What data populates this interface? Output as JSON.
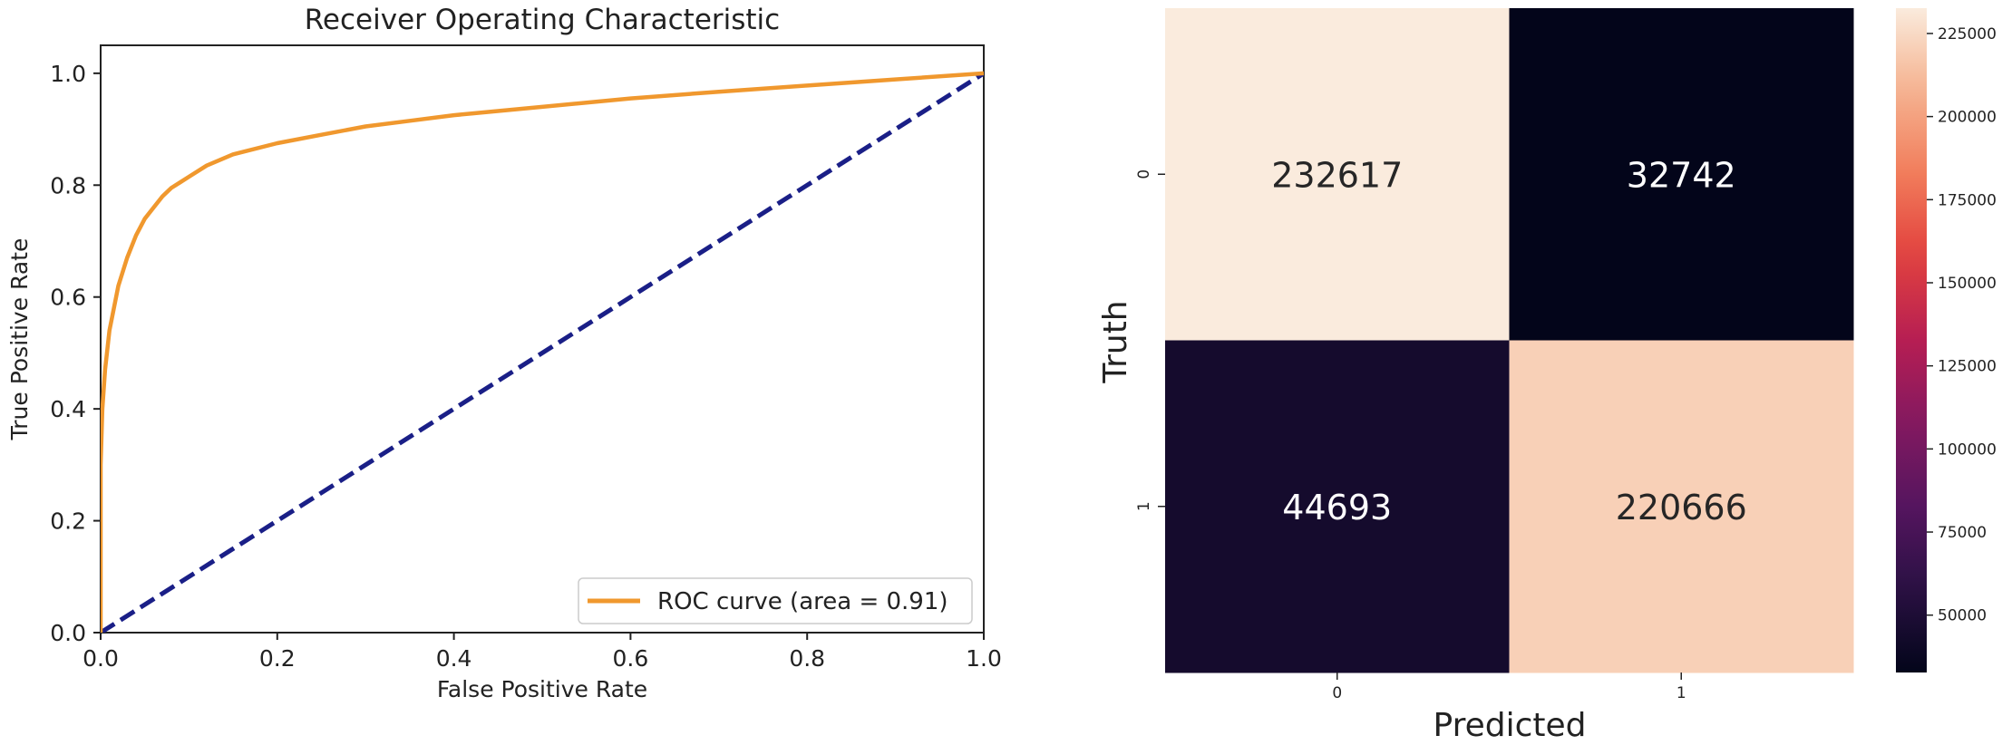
{
  "chart_data": [
    {
      "type": "line",
      "title": "Receiver Operating Characteristic",
      "xlabel": "False Positive Rate",
      "ylabel": "True Positive Rate",
      "xlim": [
        0.0,
        1.0
      ],
      "ylim": [
        0.0,
        1.05
      ],
      "xticks": [
        0.0,
        0.2,
        0.4,
        0.6,
        0.8,
        1.0
      ],
      "yticks": [
        0.0,
        0.2,
        0.4,
        0.6,
        0.8,
        1.0
      ],
      "xtick_labels": [
        "0.0",
        "0.2",
        "0.4",
        "0.6",
        "0.8",
        "1.0"
      ],
      "ytick_labels": [
        "0.0",
        "0.2",
        "0.4",
        "0.6",
        "0.8",
        "1.0"
      ],
      "grid": false,
      "legend_position": "lower-right",
      "series": [
        {
          "name": "ROC curve (area = 0.91)",
          "color": "#f0982e",
          "style": "solid",
          "x": [
            0.0,
            0.0,
            0.002,
            0.005,
            0.01,
            0.015,
            0.02,
            0.03,
            0.04,
            0.05,
            0.06,
            0.07,
            0.08,
            0.09,
            0.1,
            0.12,
            0.15,
            0.2,
            0.25,
            0.3,
            0.35,
            0.4,
            0.5,
            0.6,
            0.7,
            0.8,
            0.9,
            1.0
          ],
          "y": [
            0.0,
            0.3,
            0.4,
            0.47,
            0.54,
            0.58,
            0.62,
            0.67,
            0.71,
            0.74,
            0.76,
            0.78,
            0.795,
            0.805,
            0.815,
            0.835,
            0.855,
            0.875,
            0.89,
            0.905,
            0.915,
            0.925,
            0.94,
            0.955,
            0.967,
            0.978,
            0.989,
            1.0
          ]
        },
        {
          "color": "#1a1f87",
          "style": "dashed",
          "x": [
            0.0,
            1.0
          ],
          "y": [
            0.0,
            1.0
          ]
        }
      ]
    },
    {
      "type": "heatmap",
      "xlabel": "Predicted",
      "ylabel": "Truth",
      "x_categories": [
        "0",
        "1"
      ],
      "y_categories": [
        "0",
        "1"
      ],
      "values": [
        [
          232617,
          32742
        ],
        [
          44693,
          220666
        ]
      ],
      "value_labels": [
        [
          "232617",
          "32742"
        ],
        [
          "44693",
          "220666"
        ]
      ],
      "colorbar": {
        "min": 32742,
        "max": 232617,
        "ticks": [
          50000,
          75000,
          100000,
          125000,
          150000,
          175000,
          200000,
          225000
        ],
        "tick_labels": [
          "50000",
          "75000",
          "100000",
          "125000",
          "150000",
          "175000",
          "200000",
          "225000"
        ]
      }
    }
  ]
}
